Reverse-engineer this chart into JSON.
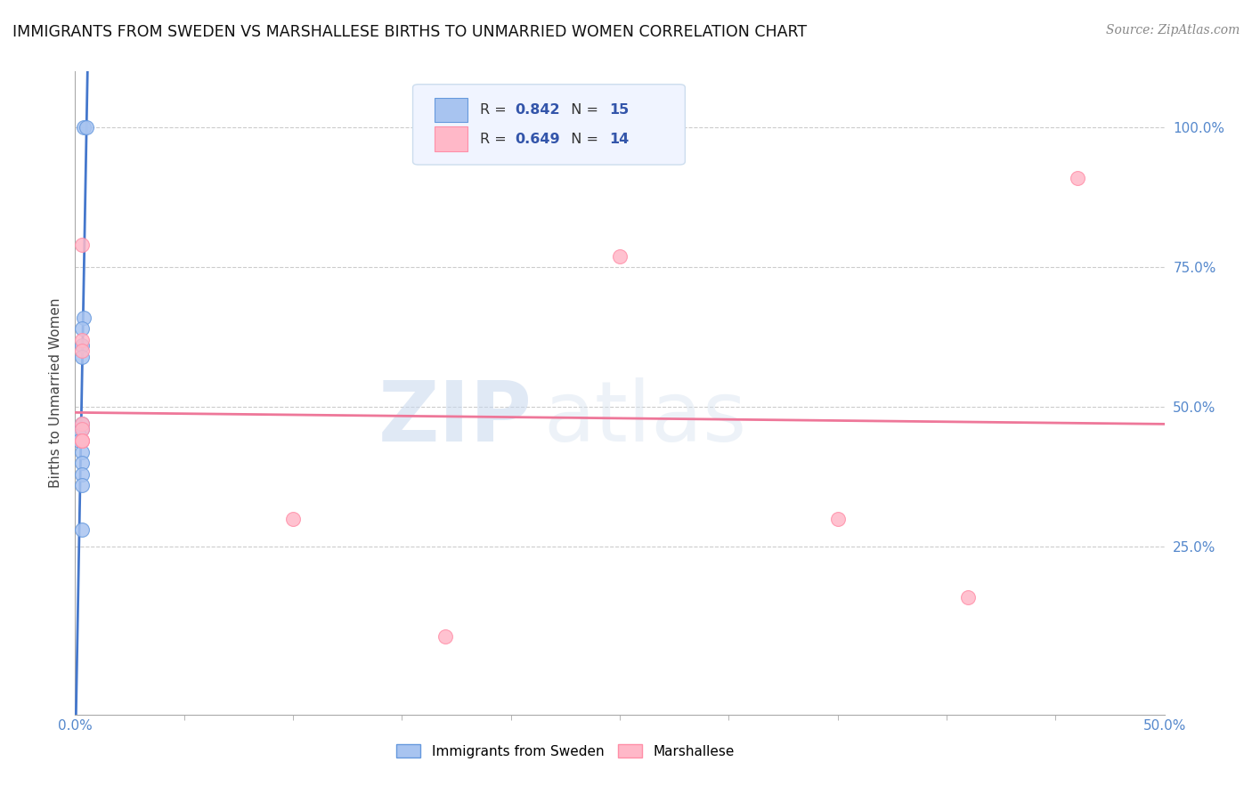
{
  "title": "IMMIGRANTS FROM SWEDEN VS MARSHALLESE BIRTHS TO UNMARRIED WOMEN CORRELATION CHART",
  "source": "Source: ZipAtlas.com",
  "ylabel_label": "Births to Unmarried Women",
  "xlim": [
    0.0,
    0.5
  ],
  "ylim": [
    -0.05,
    1.1
  ],
  "xtick_values": [
    0.0,
    0.5
  ],
  "xtick_labels": [
    "0.0%",
    "50.0%"
  ],
  "ytick_values": [
    0.25,
    0.5,
    0.75,
    1.0
  ],
  "ytick_labels": [
    "25.0%",
    "50.0%",
    "75.0%",
    "100.0%"
  ],
  "x_minor_ticks": [
    0.0,
    0.05,
    0.1,
    0.15,
    0.2,
    0.25,
    0.3,
    0.35,
    0.4,
    0.45,
    0.5
  ],
  "watermark_zip": "ZIP",
  "watermark_atlas": "atlas",
  "sweden_points_x": [
    0.004,
    0.005,
    0.004,
    0.003,
    0.003,
    0.003,
    0.003,
    0.003,
    0.002,
    0.002,
    0.003,
    0.003,
    0.003,
    0.003,
    0.003
  ],
  "sweden_points_y": [
    1.0,
    1.0,
    0.66,
    0.64,
    0.61,
    0.59,
    0.47,
    0.46,
    0.45,
    0.44,
    0.42,
    0.4,
    0.38,
    0.36,
    0.28
  ],
  "marshallese_points_x": [
    0.003,
    0.003,
    0.003,
    0.003,
    0.003,
    0.003,
    0.003,
    0.1,
    0.17,
    0.25,
    0.35,
    0.41,
    0.46,
    0.003
  ],
  "marshallese_points_y": [
    0.79,
    0.62,
    0.6,
    0.47,
    0.46,
    0.44,
    0.44,
    0.3,
    0.09,
    0.77,
    0.3,
    0.16,
    0.91,
    0.44
  ],
  "sweden_R": 0.842,
  "sweden_N": 15,
  "marshallese_R": 0.649,
  "marshallese_N": 14,
  "blue_dot_color": "#A8C4F0",
  "blue_dot_edge": "#6699DD",
  "pink_dot_color": "#FFB8C8",
  "pink_dot_edge": "#FF8FA8",
  "blue_line_color": "#4477CC",
  "pink_line_color": "#EE7799",
  "legend_face_color": "#F0F4FF",
  "legend_edge_color": "#CCDDEE",
  "legend_text_R_color": "#3355AA",
  "legend_text_N_color": "#222222",
  "right_tick_color": "#5588CC",
  "grid_color": "#CCCCCC",
  "title_color": "#111111",
  "ylabel_color": "#444444",
  "source_color": "#888888"
}
